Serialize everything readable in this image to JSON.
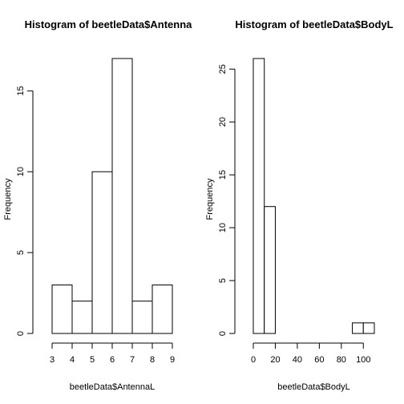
{
  "chart_data": [
    {
      "type": "bar",
      "title": "Histogram of beetleData$Antenna",
      "xlabel": "beetleData$AntennaL",
      "ylabel": "Frequency",
      "bin_edges": [
        3,
        4,
        5,
        6,
        7,
        8,
        9
      ],
      "values": [
        3,
        2,
        10,
        17,
        2,
        3
      ],
      "xlim": [
        3,
        9
      ],
      "ylim": [
        0,
        17
      ],
      "xticks": [
        3,
        4,
        5,
        6,
        7,
        8,
        9
      ],
      "yticks": [
        0,
        5,
        10,
        15
      ],
      "grid": false
    },
    {
      "type": "bar",
      "title": "Histogram of beetleData$BodyL",
      "xlabel": "beetleData$BodyL",
      "ylabel": "Frequency",
      "bin_edges": [
        0,
        10,
        20,
        30,
        40,
        50,
        60,
        70,
        80,
        90,
        100,
        110
      ],
      "values": [
        26,
        12,
        0,
        0,
        0,
        0,
        0,
        0,
        0,
        1,
        1
      ],
      "xlim": [
        0,
        110
      ],
      "ylim": [
        0,
        26
      ],
      "xticks": [
        0,
        20,
        40,
        60,
        80,
        100
      ],
      "yticks": [
        0,
        5,
        10,
        15,
        20,
        25
      ],
      "grid": false
    }
  ]
}
